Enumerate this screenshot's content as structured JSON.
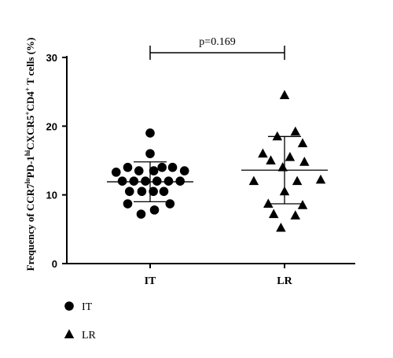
{
  "chart_data": {
    "type": "scatter",
    "ylabel_parts": [
      {
        "t": "Frequency of CCR7",
        "sup": false
      },
      {
        "t": "lo",
        "sup": true
      },
      {
        "t": "PD-1",
        "sup": false
      },
      {
        "t": "hi",
        "sup": true
      },
      {
        "t": "CXCR5",
        "sup": false
      },
      {
        "t": "+",
        "sup": true
      },
      {
        "t": "CD4",
        "sup": false
      },
      {
        "t": "+",
        "sup": true
      },
      {
        "t": " T cells (%)",
        "sup": false
      }
    ],
    "ylim": [
      0,
      30
    ],
    "yticks": [
      0,
      10,
      20,
      30
    ],
    "categories": [
      "IT",
      "LR"
    ],
    "significance": {
      "text": "p=0.169",
      "between": [
        "IT",
        "LR"
      ]
    },
    "legend_position": "bottom-left",
    "series": [
      {
        "name": "IT",
        "marker": "circle",
        "mean": 11.9,
        "sd": 2.9,
        "points": [
          {
            "y": 19.0,
            "o": 0
          },
          {
            "y": 16.0,
            "o": 0
          },
          {
            "y": 14.0,
            "o": 0.33
          },
          {
            "y": 14.0,
            "o": -0.62
          },
          {
            "y": 14.0,
            "o": 0.62
          },
          {
            "y": 13.5,
            "o": -0.31
          },
          {
            "y": 13.5,
            "o": 0.1
          },
          {
            "y": 13.5,
            "o": 0.95
          },
          {
            "y": 13.3,
            "o": -0.94
          },
          {
            "y": 12.0,
            "o": -0.77
          },
          {
            "y": 12.0,
            "o": -0.45
          },
          {
            "y": 12.0,
            "o": -0.13
          },
          {
            "y": 12.0,
            "o": 0.19
          },
          {
            "y": 12.0,
            "o": 0.51
          },
          {
            "y": 12.0,
            "o": 0.83
          },
          {
            "y": 10.5,
            "o": -0.57
          },
          {
            "y": 10.5,
            "o": -0.23
          },
          {
            "y": 10.5,
            "o": 0.09
          },
          {
            "y": 10.5,
            "o": 0.38
          },
          {
            "y": 8.7,
            "o": -0.62
          },
          {
            "y": 8.7,
            "o": 0.55
          },
          {
            "y": 7.8,
            "o": 0.12
          },
          {
            "y": 7.2,
            "o": -0.25
          }
        ]
      },
      {
        "name": "LR",
        "marker": "triangle",
        "mean": 13.6,
        "sd": 4.9,
        "points": [
          {
            "y": 24.5,
            "o": 0
          },
          {
            "y": 19.2,
            "o": 0.3
          },
          {
            "y": 18.5,
            "o": -0.2
          },
          {
            "y": 17.5,
            "o": 0.5
          },
          {
            "y": 16.0,
            "o": -0.6
          },
          {
            "y": 15.5,
            "o": 0.15
          },
          {
            "y": 15.0,
            "o": -0.38
          },
          {
            "y": 14.8,
            "o": 0.55
          },
          {
            "y": 14.0,
            "o": -0.05
          },
          {
            "y": 12.2,
            "o": 1.0
          },
          {
            "y": 12.0,
            "o": -0.85
          },
          {
            "y": 12.0,
            "o": 0.35
          },
          {
            "y": 10.5,
            "o": 0.0
          },
          {
            "y": 8.7,
            "o": -0.45
          },
          {
            "y": 8.5,
            "o": 0.5
          },
          {
            "y": 7.2,
            "o": -0.3
          },
          {
            "y": 7.0,
            "o": 0.3
          },
          {
            "y": 5.2,
            "o": -0.1
          }
        ]
      }
    ]
  },
  "legend": [
    {
      "label": "IT",
      "marker": "circle"
    },
    {
      "label": "LR",
      "marker": "triangle"
    }
  ]
}
